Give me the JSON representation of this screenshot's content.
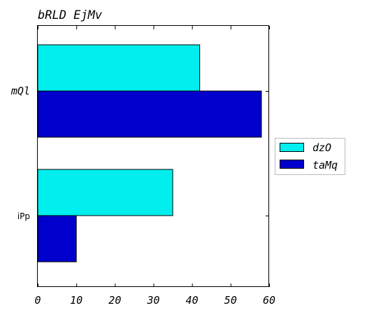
{
  "chart_data": {
    "type": "bar",
    "orientation": "horizontal",
    "title": "bRLD EjMv",
    "xlabel": "",
    "ylabel": "",
    "categories": [
      "mQl",
      "iPp"
    ],
    "series": [
      {
        "name": "dzO",
        "values": [
          42,
          35
        ],
        "color": "#00eeee"
      },
      {
        "name": "taMq",
        "values": [
          58,
          10
        ],
        "color": "#0000cd"
      }
    ],
    "xlim": [
      0,
      60
    ],
    "xticks": [
      "0",
      "10",
      "20",
      "30",
      "40",
      "50",
      "60"
    ],
    "grid": false,
    "legend_position": "right"
  }
}
